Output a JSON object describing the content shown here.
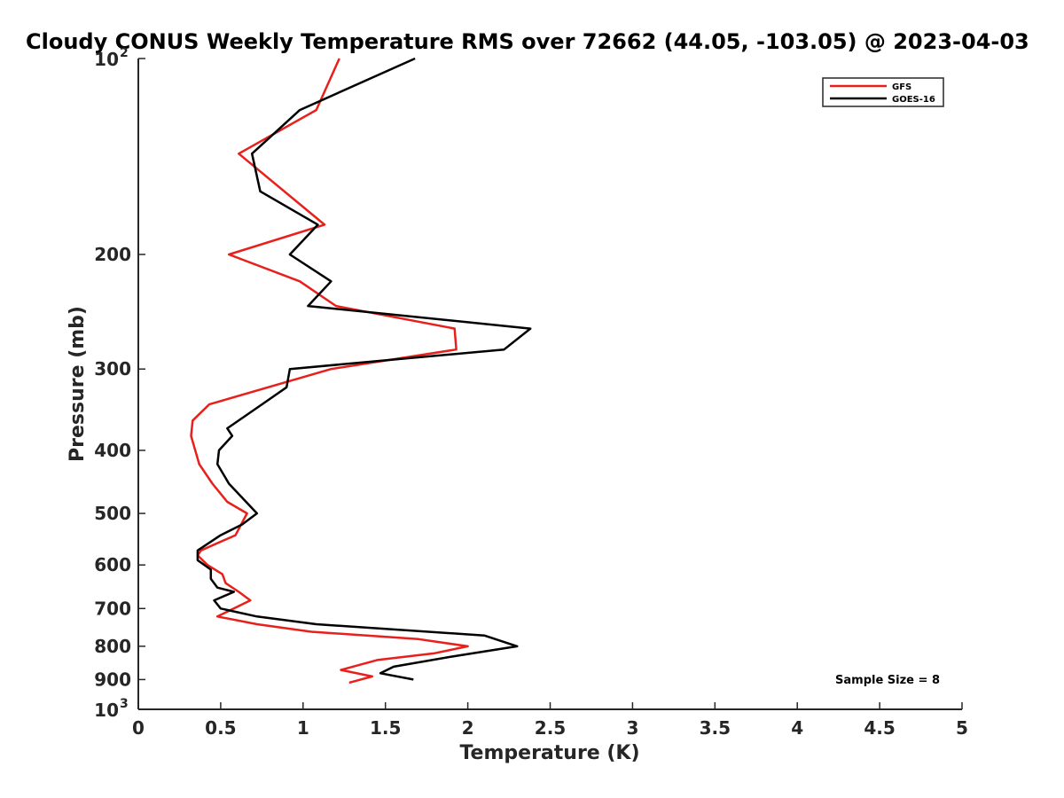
{
  "chart_data": {
    "type": "line",
    "title": "Cloudy CONUS Weekly Temperature RMS over 72662 (44.05, -103.05) @ 2023-04-03",
    "xlabel": "Temperature (K)",
    "ylabel": "Pressure (mb)",
    "xlim": [
      0,
      5
    ],
    "ylim": [
      100,
      1000
    ],
    "y_scale": "log",
    "y_reversed": true,
    "grid": false,
    "legend_position": "top-right",
    "x_ticks": [
      {
        "value": 0,
        "label": "0"
      },
      {
        "value": 0.5,
        "label": "0.5"
      },
      {
        "value": 1,
        "label": "1"
      },
      {
        "value": 1.5,
        "label": "1.5"
      },
      {
        "value": 2,
        "label": "2"
      },
      {
        "value": 2.5,
        "label": "2.5"
      },
      {
        "value": 3,
        "label": "3"
      },
      {
        "value": 3.5,
        "label": "3.5"
      },
      {
        "value": 4,
        "label": "4"
      },
      {
        "value": 4.5,
        "label": "4.5"
      },
      {
        "value": 5,
        "label": "5"
      }
    ],
    "y_ticks": [
      {
        "value": 100,
        "base": "10",
        "exp": "2"
      },
      {
        "value": 200,
        "label": "200"
      },
      {
        "value": 300,
        "label": "300"
      },
      {
        "value": 400,
        "label": "400"
      },
      {
        "value": 500,
        "label": "500"
      },
      {
        "value": 600,
        "label": "600"
      },
      {
        "value": 700,
        "label": "700"
      },
      {
        "value": 800,
        "label": "800"
      },
      {
        "value": 900,
        "label": "900"
      },
      {
        "value": 1000,
        "base": "10",
        "exp": "3"
      }
    ],
    "series": [
      {
        "name": "GFS",
        "color": "#e8201c",
        "points": [
          [
            1.22,
            100
          ],
          [
            1.08,
            120
          ],
          [
            0.61,
            140
          ],
          [
            1.13,
            180
          ],
          [
            0.55,
            200
          ],
          [
            0.98,
            220
          ],
          [
            1.2,
            240
          ],
          [
            1.92,
            260
          ],
          [
            1.93,
            280
          ],
          [
            1.17,
            300
          ],
          [
            0.43,
            340
          ],
          [
            0.33,
            360
          ],
          [
            0.32,
            380
          ],
          [
            0.37,
            420
          ],
          [
            0.45,
            450
          ],
          [
            0.54,
            480
          ],
          [
            0.66,
            500
          ],
          [
            0.59,
            540
          ],
          [
            0.38,
            570
          ],
          [
            0.36,
            580
          ],
          [
            0.42,
            600
          ],
          [
            0.51,
            620
          ],
          [
            0.53,
            640
          ],
          [
            0.61,
            660
          ],
          [
            0.68,
            680
          ],
          [
            0.48,
            720
          ],
          [
            0.72,
            740
          ],
          [
            1.05,
            760
          ],
          [
            1.7,
            780
          ],
          [
            2.0,
            800
          ],
          [
            1.8,
            820
          ],
          [
            1.45,
            840
          ],
          [
            1.23,
            870
          ],
          [
            1.42,
            890
          ],
          [
            1.28,
            910
          ]
        ]
      },
      {
        "name": "GOES-16",
        "color": "#000000",
        "points": [
          [
            1.68,
            100
          ],
          [
            0.98,
            120
          ],
          [
            0.69,
            140
          ],
          [
            0.74,
            160
          ],
          [
            1.09,
            180
          ],
          [
            0.92,
            200
          ],
          [
            1.17,
            220
          ],
          [
            1.03,
            240
          ],
          [
            2.38,
            260
          ],
          [
            2.22,
            280
          ],
          [
            0.92,
            300
          ],
          [
            0.9,
            320
          ],
          [
            0.75,
            340
          ],
          [
            0.54,
            370
          ],
          [
            0.57,
            380
          ],
          [
            0.49,
            400
          ],
          [
            0.48,
            420
          ],
          [
            0.55,
            450
          ],
          [
            0.72,
            500
          ],
          [
            0.63,
            520
          ],
          [
            0.5,
            540
          ],
          [
            0.36,
            570
          ],
          [
            0.36,
            590
          ],
          [
            0.44,
            610
          ],
          [
            0.44,
            630
          ],
          [
            0.48,
            650
          ],
          [
            0.58,
            660
          ],
          [
            0.46,
            680
          ],
          [
            0.5,
            700
          ],
          [
            0.72,
            720
          ],
          [
            1.08,
            740
          ],
          [
            2.1,
            770
          ],
          [
            2.3,
            800
          ],
          [
            1.9,
            830
          ],
          [
            1.55,
            860
          ],
          [
            1.47,
            880
          ],
          [
            1.67,
            900
          ]
        ]
      }
    ],
    "annotation": "Sample Size = 8"
  }
}
